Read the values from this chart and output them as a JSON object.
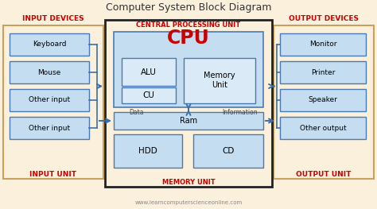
{
  "title": "Computer System Block Diagram",
  "bg_color": "#faf0dc",
  "cpu_section_bg": "#faf0dc",
  "box_fill_light": "#c5ddf0",
  "box_fill_cpu": "#c5ddf0",
  "box_fill_inner": "#daeaf7",
  "border_tan": "#c8a060",
  "border_dark": "#222222",
  "border_blue": "#4a7ab5",
  "red_color": "#cc0000",
  "arrow_color": "#3a6faa",
  "text_gray": "#888888",
  "website": "www.learncomputerscienceonline.com",
  "input_devices": [
    "Keyboard",
    "Mouse",
    "Other input",
    "Other input"
  ],
  "output_devices": [
    "Monitor",
    "Printer",
    "Speaker",
    "Other output"
  ]
}
